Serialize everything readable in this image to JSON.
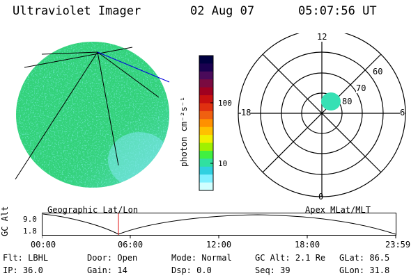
{
  "header": {
    "instrument": "Ultraviolet Imager",
    "date": "02 Aug 07",
    "time": "05:07:56 UT"
  },
  "colorbar": {
    "unit_label": "photon cm⁻²s⁻¹",
    "ticks": [
      "100",
      "10"
    ],
    "colors": [
      "#000040",
      "#1a0050",
      "#4a0a5a",
      "#7a0a40",
      "#a00020",
      "#c81010",
      "#e03010",
      "#f06010",
      "#ff9000",
      "#ffc000",
      "#f0f000",
      "#a0f000",
      "#40f040",
      "#30e0a0",
      "#30d0e0",
      "#80f0ff",
      "#d0ffff"
    ]
  },
  "polar_plot": {
    "labels": {
      "top": "12",
      "bottom": "0",
      "left": "18",
      "right": "6"
    },
    "rings": [
      "60",
      "70",
      "80"
    ],
    "fill_color": "#36e0b4"
  },
  "image_panel": {
    "disk_color": "#33d27a",
    "edge_color": "#6fe0f0"
  },
  "orbit": {
    "ylabel": "GC Alt",
    "yticks": [
      "9.0",
      "1.8"
    ],
    "left_title": "Geographic Lat/Lon",
    "right_title": "Apex MLat/MLT",
    "xticks": [
      "00:00",
      "06:00",
      "12:00",
      "18:00",
      "23:59"
    ],
    "marker_color": "#e01010"
  },
  "footer": {
    "row1": [
      {
        "label": "Flt:",
        "value": "LBHL"
      },
      {
        "label": "Door:",
        "value": "Open"
      },
      {
        "label": "Mode:",
        "value": "Normal"
      },
      {
        "label": "GC Alt:",
        "value": "2.1 Re"
      },
      {
        "label": "GLat:",
        "value": "86.5"
      }
    ],
    "row2": [
      {
        "label": "IP:",
        "value": "36.0"
      },
      {
        "label": "Gain:",
        "value": "14"
      },
      {
        "label": "Dsp:",
        "value": "0.0"
      },
      {
        "label": "Seq:",
        "value": "39"
      },
      {
        "label": "GLon:",
        "value": "31.8"
      }
    ]
  }
}
